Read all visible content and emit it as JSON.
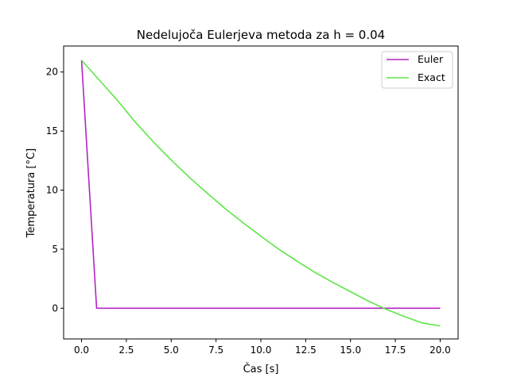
{
  "chart_data": {
    "type": "line",
    "title": "Nedelujoča Eulerjeva metoda za h = 0.04",
    "xlabel": "Čas [s]",
    "ylabel": "Temperatura [°C]",
    "xlim": [
      -1.0,
      21.0
    ],
    "ylim": [
      -2.6,
      22.2
    ],
    "xticks": [
      0.0,
      2.5,
      5.0,
      7.5,
      10.0,
      12.5,
      15.0,
      17.5,
      20.0
    ],
    "xtick_labels": [
      "0.0",
      "2.5",
      "5.0",
      "7.5",
      "10.0",
      "12.5",
      "15.0",
      "17.5",
      "20.0"
    ],
    "yticks": [
      0,
      5,
      10,
      15,
      20
    ],
    "ytick_labels": [
      "0",
      "5",
      "10",
      "15",
      "20"
    ],
    "grid": false,
    "legend_position": "top-right",
    "series": [
      {
        "name": "Euler",
        "color": "#b224c4",
        "x": [
          0.0,
          0.84,
          20.0
        ],
        "y": [
          21.0,
          0.0,
          0.0
        ]
      },
      {
        "name": "Exact",
        "color": "#5ce645",
        "x": [
          0.0,
          1.0,
          2.0,
          3.0,
          4.0,
          5.0,
          6.0,
          7.0,
          8.0,
          9.0,
          10.0,
          11.0,
          12.0,
          13.0,
          14.0,
          15.0,
          16.0,
          17.0,
          18.0,
          19.0,
          20.0
        ],
        "y": [
          21.0,
          19.3,
          17.6,
          15.75,
          14.1,
          12.55,
          11.1,
          9.75,
          8.45,
          7.25,
          6.1,
          5.0,
          4.0,
          3.05,
          2.2,
          1.4,
          0.6,
          -0.1,
          -0.7,
          -1.25,
          -1.5
        ]
      }
    ]
  }
}
